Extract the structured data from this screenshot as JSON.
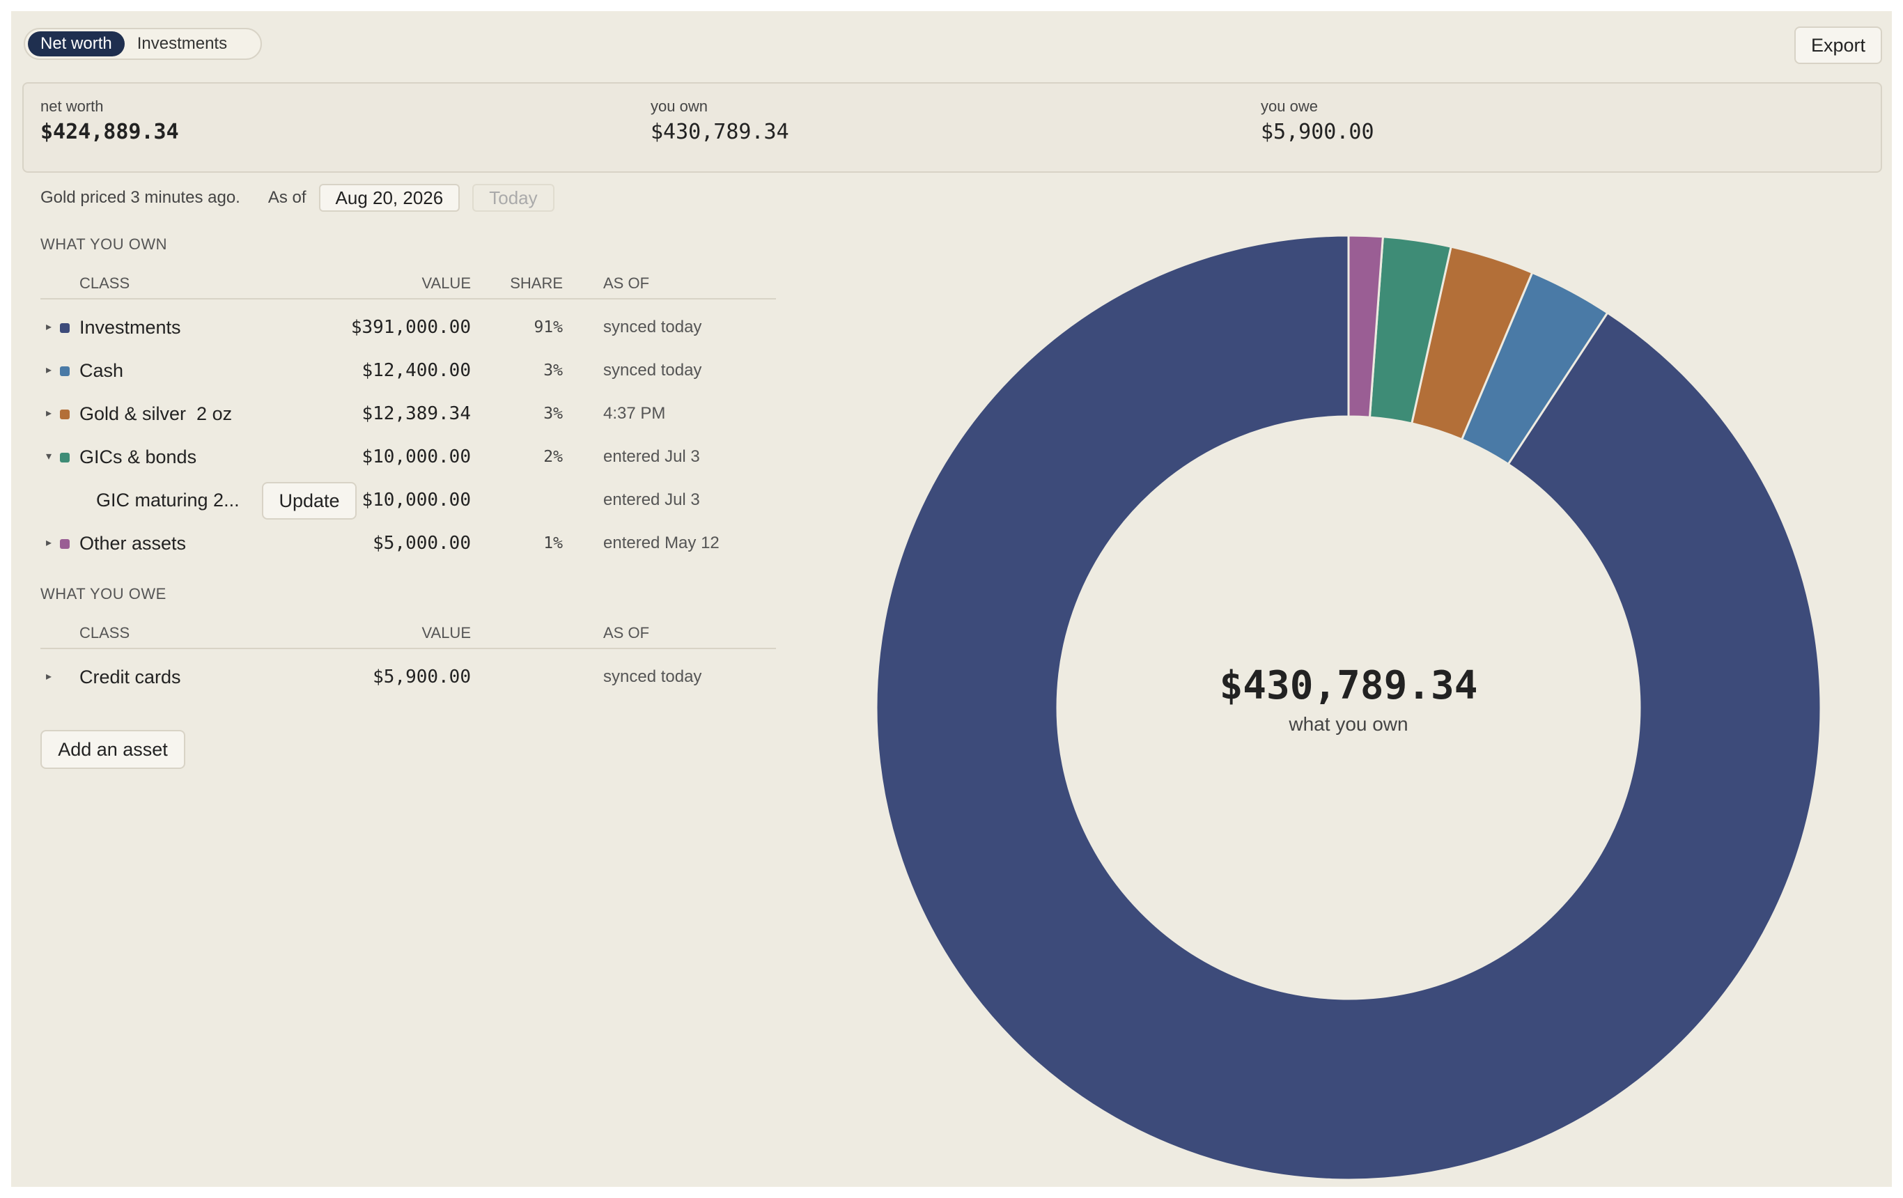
{
  "tabs": [
    {
      "label": "Net worth",
      "active": true
    },
    {
      "label": "Investments",
      "active": false
    }
  ],
  "export_label": "Export",
  "summary": {
    "net_worth": {
      "label": "net worth",
      "value": "$424,889.34"
    },
    "you_own": {
      "label": "you own",
      "value": "$430,789.34"
    },
    "you_owe": {
      "label": "you owe",
      "value": "$5,900.00"
    }
  },
  "status": {
    "pricing_note": "Gold priced 3 minutes ago.",
    "as_of_label": "As of",
    "date_value": "Aug 20, 2026",
    "today_label": "Today"
  },
  "own": {
    "title": "WHAT YOU OWN",
    "headers": {
      "class": "CLASS",
      "value": "VALUE",
      "share": "SHARE",
      "as_of": "AS OF"
    },
    "rows": [
      {
        "caret": "▸",
        "name": "Investments",
        "value": "$391,000.00",
        "share": "91%",
        "as_of": "synced today",
        "color": "#3d4b7a"
      },
      {
        "caret": "▸",
        "name": "Cash",
        "value": "$12,400.00",
        "share": "3%",
        "as_of": "synced today",
        "color": "#4a7aa6"
      },
      {
        "caret": "▸",
        "name": "Gold & silver  2 oz",
        "value": "$12,389.34",
        "share": "3%",
        "as_of": "4:37 PM",
        "color": "#b36f38"
      },
      {
        "caret": "▾",
        "name": "GICs & bonds",
        "value": "$10,000.00",
        "share": "2%",
        "as_of": "entered Jul 3",
        "color": "#3e8c76"
      },
      {
        "caret": "▸",
        "name": "Other assets",
        "value": "$5,000.00",
        "share": "1%",
        "as_of": "entered May 12",
        "color": "#9a5e94"
      }
    ],
    "sub_row": {
      "name": "GIC maturing 2...",
      "update_label": "Update",
      "value": "$10,000.00",
      "as_of": "entered Jul 3"
    }
  },
  "owe": {
    "title": "WHAT YOU OWE",
    "headers": {
      "class": "CLASS",
      "value": "VALUE",
      "as_of": "AS OF"
    },
    "rows": [
      {
        "caret": "▸",
        "name": "Credit cards",
        "value": "$5,900.00",
        "as_of": "synced today"
      }
    ]
  },
  "add_asset_label": "Add an asset",
  "chart_data": {
    "type": "pie",
    "donut": true,
    "categories": [
      "Investments",
      "Cash",
      "Gold & silver",
      "GICs & bonds",
      "Other assets"
    ],
    "values": [
      391000.0,
      12400.0,
      12389.34,
      10000.0,
      5000.0
    ],
    "colors": [
      "#3d4b7a",
      "#4a7aa6",
      "#b36f38",
      "#3e8c76",
      "#9a5e94"
    ],
    "center_value": "$430,789.34",
    "center_label": "what you own"
  }
}
